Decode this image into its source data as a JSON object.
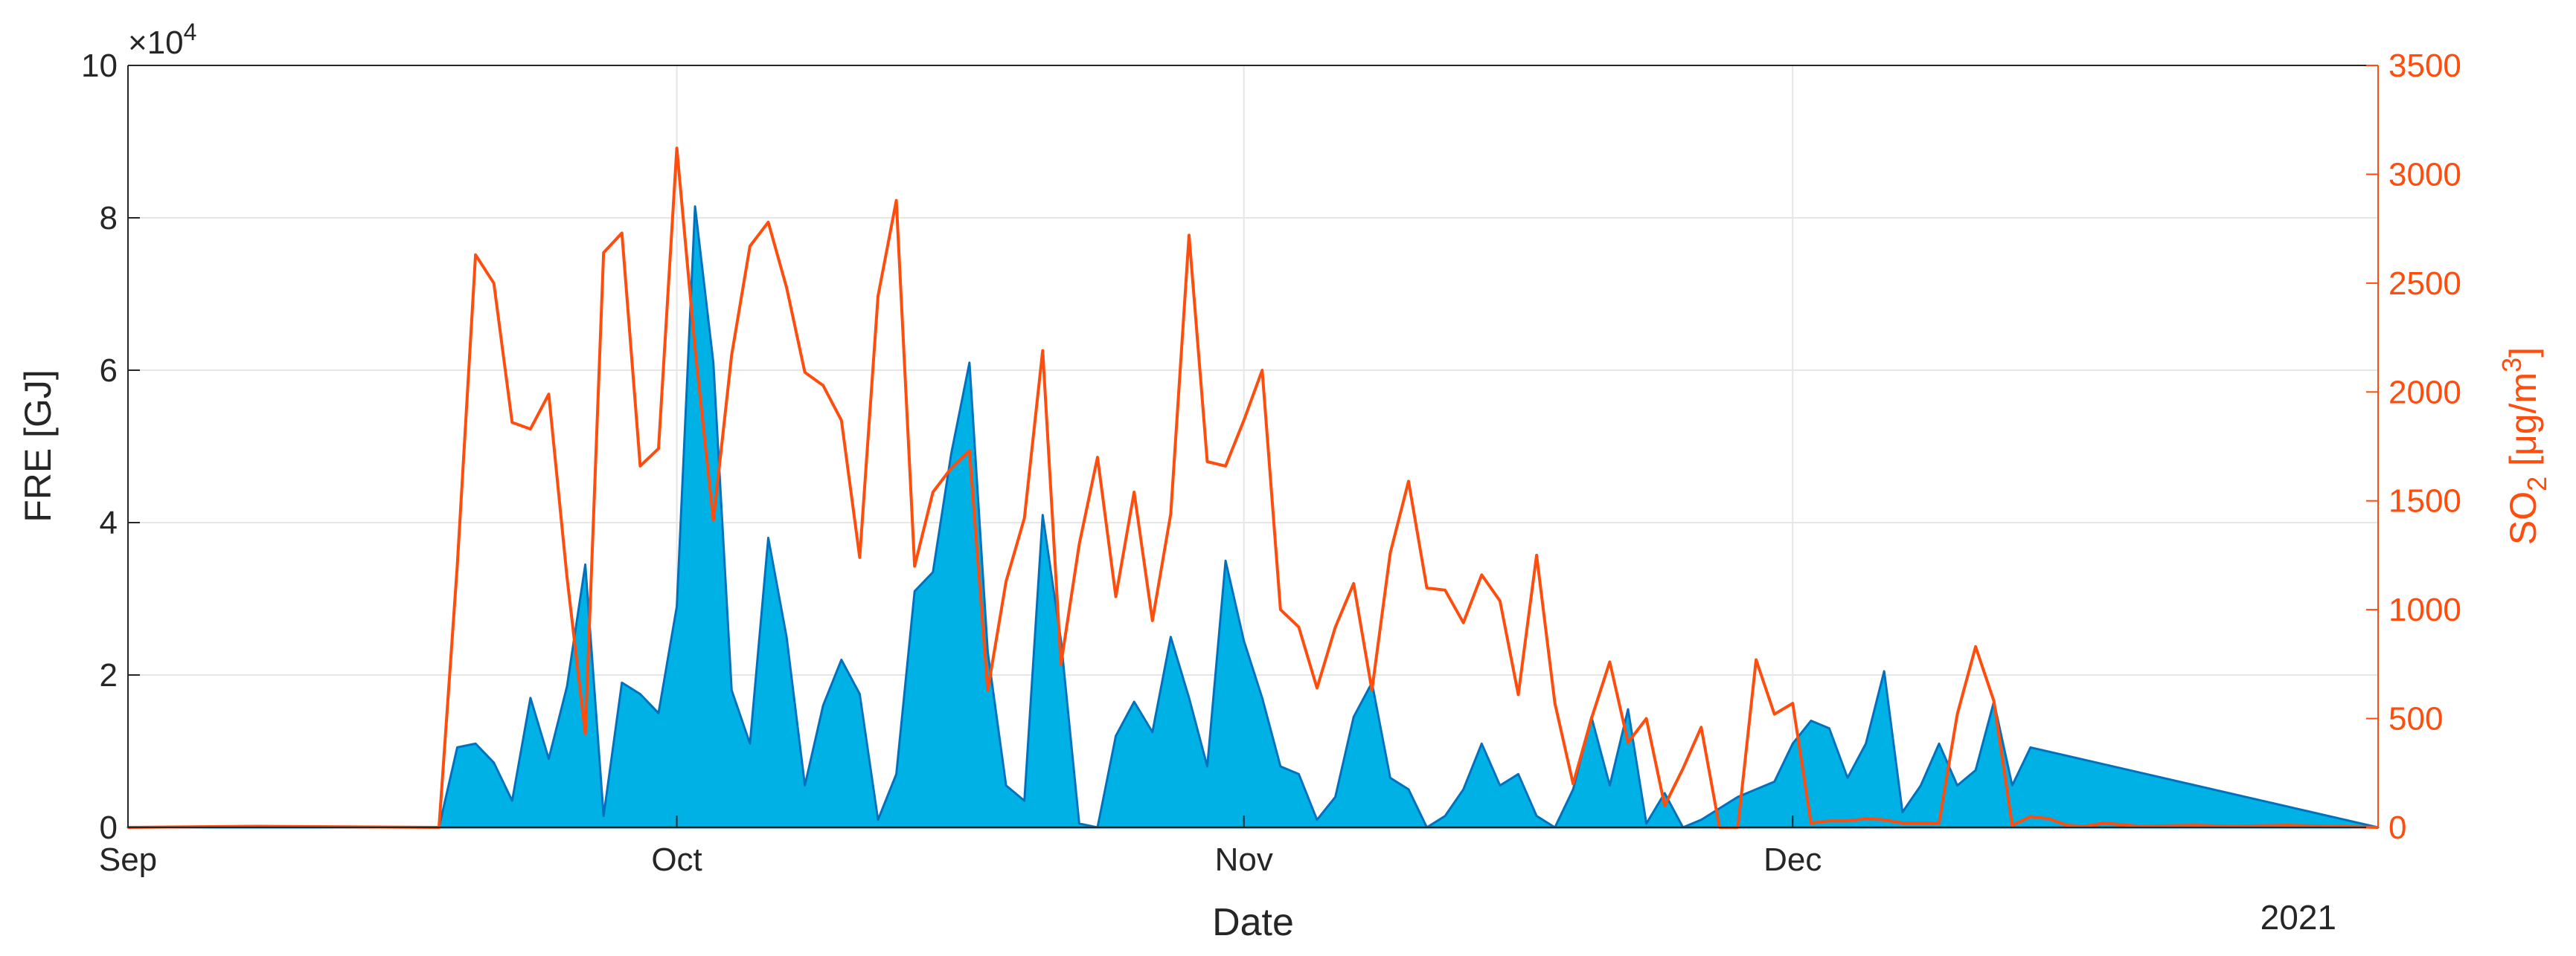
{
  "chart_data": {
    "type": "area",
    "xlabel": "Date",
    "year_label": "2021",
    "x_ticks": [
      {
        "date": "2021-09-01",
        "label": "Sep"
      },
      {
        "date": "2021-10-01",
        "label": "Oct"
      },
      {
        "date": "2021-11-01",
        "label": "Nov"
      },
      {
        "date": "2021-12-01",
        "label": "Dec"
      }
    ],
    "xlim": [
      "2021-09-01",
      "2022-01-02"
    ],
    "left_axis": {
      "label": "FRE [GJ]",
      "exponent_label": "×10",
      "exponent_power": "4",
      "ylim": [
        0,
        10
      ],
      "ticks": [
        0,
        2,
        4,
        6,
        8,
        10
      ],
      "color": "#262626"
    },
    "right_axis": {
      "label_main": "SO",
      "label_sub": "2",
      "label_units": " [μg/m",
      "label_sup": "3",
      "label_close": "]",
      "ylim": [
        0,
        3500
      ],
      "ticks": [
        0,
        500,
        1000,
        1500,
        2000,
        2500,
        3000,
        3500
      ],
      "color": "#ff4d0d"
    },
    "grid": true,
    "series": [
      {
        "axis": "left",
        "kind": "area",
        "fill": "#00b1e6",
        "stroke": "#0072bd",
        "x": [
          "2021-09-01",
          "2021-09-18",
          "2021-09-19",
          "2021-09-20",
          "2021-09-21",
          "2021-09-22",
          "2021-09-23",
          "2021-09-24",
          "2021-09-25",
          "2021-09-26",
          "2021-09-27",
          "2021-09-28",
          "2021-09-29",
          "2021-09-30",
          "2021-10-01",
          "2021-10-02",
          "2021-10-03",
          "2021-10-04",
          "2021-10-05",
          "2021-10-06",
          "2021-10-07",
          "2021-10-08",
          "2021-10-09",
          "2021-10-10",
          "2021-10-11",
          "2021-10-12",
          "2021-10-13",
          "2021-10-14",
          "2021-10-15",
          "2021-10-16",
          "2021-10-17",
          "2021-10-18",
          "2021-10-19",
          "2021-10-20",
          "2021-10-21",
          "2021-10-22",
          "2021-10-23",
          "2021-10-24",
          "2021-10-25",
          "2021-10-26",
          "2021-10-27",
          "2021-10-28",
          "2021-10-29",
          "2021-10-30",
          "2021-10-31",
          "2021-11-01",
          "2021-11-02",
          "2021-11-03",
          "2021-11-04",
          "2021-11-05",
          "2021-11-06",
          "2021-11-07",
          "2021-11-08",
          "2021-11-09",
          "2021-11-10",
          "2021-11-11",
          "2021-11-12",
          "2021-11-13",
          "2021-11-14",
          "2021-11-15",
          "2021-11-16",
          "2021-11-17",
          "2021-11-18",
          "2021-11-19",
          "2021-11-20",
          "2021-11-21",
          "2021-11-22",
          "2021-11-23",
          "2021-11-24",
          "2021-11-25",
          "2021-11-26",
          "2021-11-27",
          "2021-11-28",
          "2021-11-29",
          "2021-11-30",
          "2021-12-01",
          "2021-12-02",
          "2021-12-03",
          "2021-12-04",
          "2021-12-05",
          "2021-12-06",
          "2021-12-07",
          "2021-12-08",
          "2021-12-09",
          "2021-12-10",
          "2021-12-11",
          "2021-12-12",
          "2021-12-13",
          "2021-12-14",
          "2022-01-02"
        ],
        "values": [
          0,
          0,
          1.05,
          1.1,
          0.85,
          0.35,
          1.7,
          0.9,
          1.85,
          3.45,
          0.15,
          1.9,
          1.75,
          1.5,
          2.9,
          8.15,
          6.1,
          1.8,
          1.1,
          3.8,
          2.5,
          0.55,
          1.6,
          2.2,
          1.75,
          0.1,
          0.7,
          3.1,
          3.35,
          4.9,
          6.1,
          2.3,
          0.55,
          0.35,
          4.1,
          2.45,
          0.05,
          0,
          1.2,
          1.65,
          1.25,
          2.5,
          1.7,
          0.8,
          3.5,
          2.45,
          1.7,
          0.8,
          0.7,
          0.1,
          0.4,
          1.45,
          1.9,
          0.65,
          0.5,
          0,
          0.15,
          0.5,
          1.1,
          0.55,
          0.7,
          0.15,
          0,
          0.5,
          1.45,
          0.55,
          1.55,
          0.05,
          0.45,
          0,
          0.1,
          0.25,
          0.4,
          0.5,
          0.6,
          1.1,
          1.4,
          1.3,
          0.65,
          1.1,
          2.05,
          0.2,
          0.55,
          1.1,
          0.55,
          0.75,
          1.65,
          0.55,
          1.05,
          0
        ]
      },
      {
        "axis": "right",
        "kind": "line",
        "stroke": "#ff4d0d",
        "x": [
          "2021-09-01",
          "2021-09-08",
          "2021-09-18",
          "2021-09-19",
          "2021-09-20",
          "2021-09-21",
          "2021-09-22",
          "2021-09-23",
          "2021-09-24",
          "2021-09-25",
          "2021-09-26",
          "2021-09-27",
          "2021-09-28",
          "2021-09-29",
          "2021-09-30",
          "2021-10-01",
          "2021-10-02",
          "2021-10-03",
          "2021-10-04",
          "2021-10-05",
          "2021-10-06",
          "2021-10-07",
          "2021-10-08",
          "2021-10-09",
          "2021-10-10",
          "2021-10-11",
          "2021-10-12",
          "2021-10-13",
          "2021-10-14",
          "2021-10-15",
          "2021-10-16",
          "2021-10-17",
          "2021-10-18",
          "2021-10-19",
          "2021-10-20",
          "2021-10-21",
          "2021-10-22",
          "2021-10-23",
          "2021-10-24",
          "2021-10-25",
          "2021-10-26",
          "2021-10-27",
          "2021-10-28",
          "2021-10-29",
          "2021-10-30",
          "2021-10-31",
          "2021-11-01",
          "2021-11-02",
          "2021-11-03",
          "2021-11-04",
          "2021-11-05",
          "2021-11-06",
          "2021-11-07",
          "2021-11-08",
          "2021-11-09",
          "2021-11-10",
          "2021-11-11",
          "2021-11-12",
          "2021-11-13",
          "2021-11-14",
          "2021-11-15",
          "2021-11-16",
          "2021-11-17",
          "2021-11-18",
          "2021-11-19",
          "2021-11-20",
          "2021-11-21",
          "2021-11-22",
          "2021-11-23",
          "2021-11-24",
          "2021-11-25",
          "2021-11-26",
          "2021-11-27",
          "2021-11-28",
          "2021-11-29",
          "2021-11-30",
          "2021-12-01",
          "2021-12-02",
          "2021-12-03",
          "2021-12-04",
          "2021-12-05",
          "2021-12-06",
          "2021-12-07",
          "2021-12-08",
          "2021-12-09",
          "2021-12-10",
          "2021-12-11",
          "2021-12-12",
          "2021-12-13",
          "2021-12-14",
          "2021-12-15",
          "2021-12-16",
          "2021-12-17",
          "2021-12-18",
          "2021-12-20",
          "2021-12-23",
          "2021-12-25",
          "2021-12-28",
          "2022-01-02"
        ],
        "values": [
          0,
          5,
          0,
          1200,
          2630,
          2500,
          1860,
          1830,
          1990,
          1150,
          430,
          2640,
          2730,
          1660,
          1740,
          3120,
          2200,
          1410,
          2170,
          2670,
          2780,
          2480,
          2090,
          2030,
          1870,
          1240,
          2440,
          2880,
          1200,
          1540,
          1650,
          1730,
          630,
          1130,
          1420,
          2190,
          750,
          1300,
          1700,
          1060,
          1540,
          950,
          1440,
          2720,
          1680,
          1660,
          1870,
          2100,
          1000,
          920,
          640,
          920,
          1120,
          630,
          1260,
          1590,
          1100,
          1090,
          940,
          1160,
          1040,
          610,
          1250,
          570,
          200,
          500,
          760,
          390,
          500,
          100,
          270,
          460,
          0,
          0,
          770,
          520,
          570,
          20,
          30,
          30,
          40,
          35,
          20,
          20,
          20,
          520,
          830,
          580,
          10,
          50,
          40,
          10,
          5,
          20,
          5,
          10,
          5,
          10,
          0
        ]
      }
    ]
  }
}
